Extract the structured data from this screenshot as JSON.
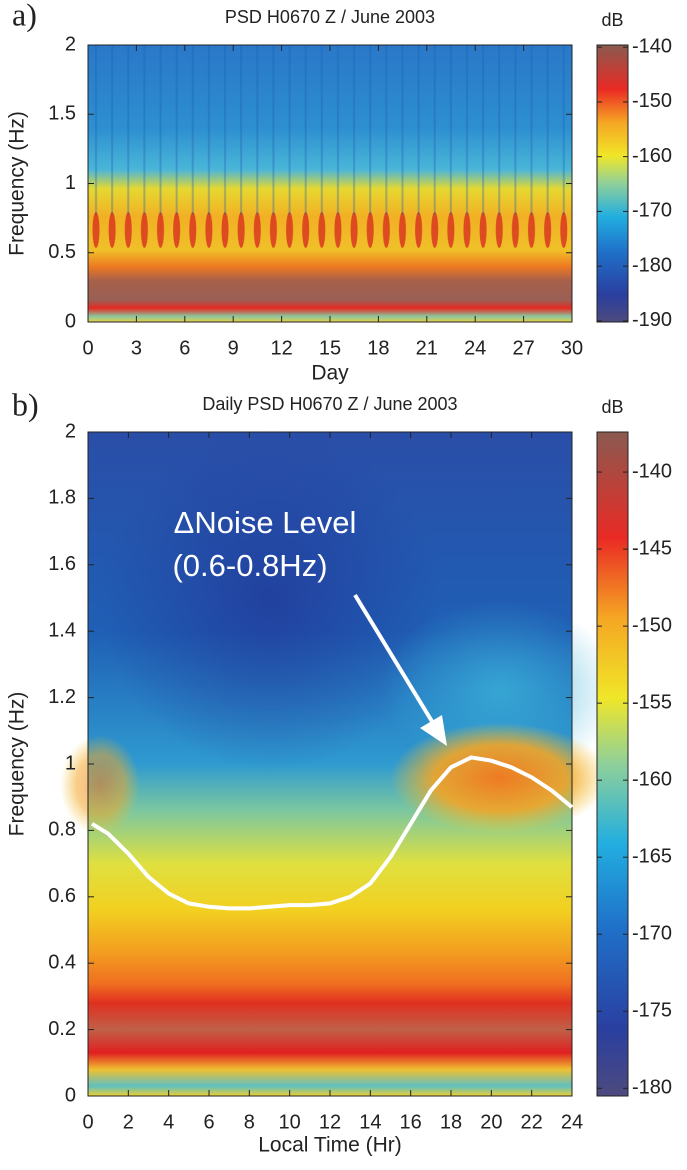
{
  "chart_data": [
    {
      "type": "heatmap",
      "panel_label": "a)",
      "title": "PSD H0670 Z / June 2003",
      "xlabel": "Day",
      "ylabel": "Frequency (Hz)",
      "xlim": [
        0,
        30
      ],
      "xticks": [
        0,
        3,
        6,
        9,
        12,
        15,
        18,
        21,
        24,
        27,
        30
      ],
      "ylim": [
        0,
        2
      ],
      "yticks": [
        0,
        0.5,
        1,
        1.5,
        2
      ],
      "colorbar": {
        "label": "dB",
        "lim": [
          -190.2,
          -139.6
        ],
        "ticks": [
          -190,
          -180,
          -170,
          -160,
          -150,
          -140
        ]
      }
    },
    {
      "type": "heatmap",
      "panel_label": "b)",
      "title": "Daily PSD H0670 Z / June 2003",
      "xlabel": "Local Time (Hr)",
      "ylabel": "Frequency (Hz)",
      "xlim": [
        0,
        24
      ],
      "xticks": [
        0,
        2,
        4,
        6,
        8,
        10,
        12,
        14,
        16,
        18,
        20,
        22,
        24
      ],
      "ylim": [
        0,
        2
      ],
      "yticks": [
        0,
        0.2,
        0.4,
        0.6,
        0.8,
        1,
        1.2,
        1.4,
        1.6,
        1.8,
        2
      ],
      "colorbar": {
        "label": "dB",
        "lim": [
          -180.5,
          -137.4
        ],
        "ticks": [
          -180,
          -175,
          -170,
          -165,
          -160,
          -155,
          -150,
          -145,
          -140
        ]
      },
      "annotation": [
        "ΔNoise Level",
        "(0.6-0.8Hz)"
      ],
      "overlay": {
        "color": "#ffffff",
        "x": [
          0.2,
          1,
          2,
          3,
          4,
          5,
          6,
          7,
          8,
          9,
          10,
          11,
          12,
          13,
          14,
          15,
          16,
          17,
          18,
          19,
          20,
          21,
          22,
          23,
          24
        ],
        "values": [
          0.82,
          0.79,
          0.73,
          0.66,
          0.61,
          0.58,
          0.57,
          0.565,
          0.565,
          0.57,
          0.575,
          0.575,
          0.58,
          0.6,
          0.64,
          0.72,
          0.82,
          0.92,
          0.99,
          1.02,
          1.01,
          0.99,
          0.96,
          0.92,
          0.87
        ]
      }
    }
  ]
}
